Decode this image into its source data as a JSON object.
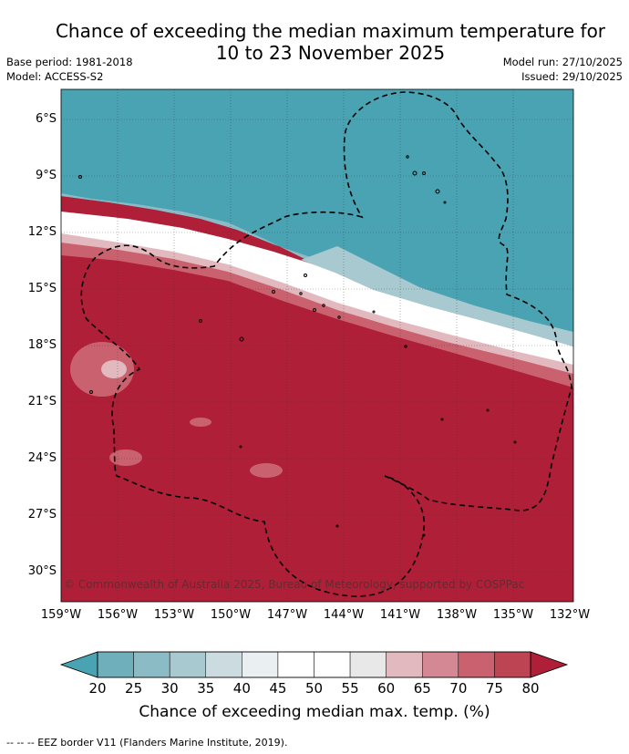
{
  "title_line1": "Chance of exceeding the median maximum temperature for",
  "title_line2": "10 to 23 November 2025",
  "base_period": "Base period: 1981-2018",
  "model": "Model: ACCESS-S2",
  "model_run": "Model run: 27/10/2025",
  "issued": "Issued: 29/10/2025",
  "lat_labels": [
    "6°S",
    "9°S",
    "12°S",
    "15°S",
    "18°S",
    "21°S",
    "24°S",
    "27°S",
    "30°S"
  ],
  "lon_labels": [
    "159°W",
    "156°W",
    "153°W",
    "150°W",
    "147°W",
    "144°W",
    "141°W",
    "138°W",
    "135°W",
    "132°W"
  ],
  "copyright": "© Commonwealth of Australia 2025, Bureau of Meteorology, supported by COSPPac",
  "colorbar": {
    "ticks": [
      "20",
      "25",
      "30",
      "35",
      "40",
      "45",
      "50",
      "55",
      "60",
      "65",
      "70",
      "75",
      "80"
    ],
    "colors": [
      "#4aa3b2",
      "#6eafbb",
      "#8bbcc6",
      "#a8c9cf",
      "#cbdbdf",
      "#eaf0f2",
      "#ffffff",
      "#ffffff",
      "#e8e8e8",
      "#e2b9bf",
      "#d48893",
      "#c9626e",
      "#bd4553",
      "#b01f38"
    ],
    "title": "Chance of exceeding median max. temp. (%)"
  },
  "footer": "--  --  -- EEZ border V11 (Flanders Marine Institute, 2019)."
}
